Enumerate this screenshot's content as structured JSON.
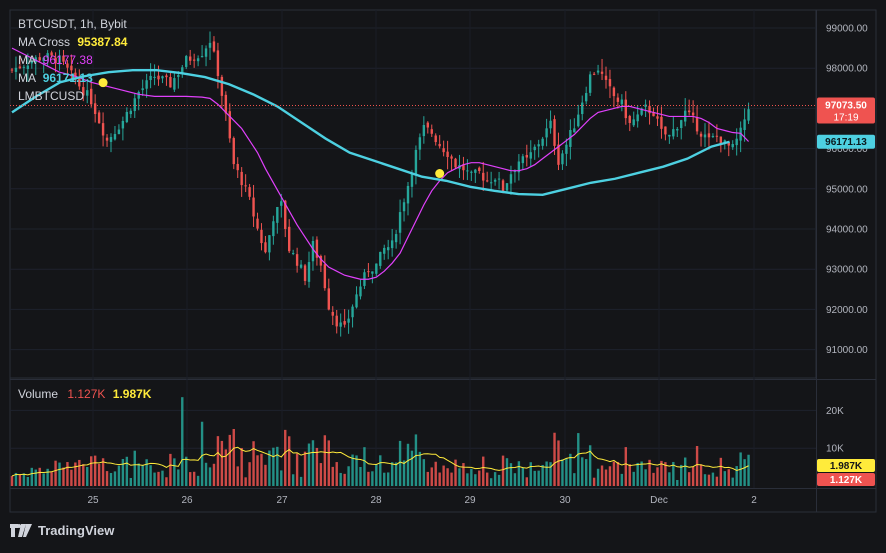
{
  "header": {
    "symbol": "BTCUSDT",
    "interval": "1h",
    "exchange": "Bybit",
    "sep": ","
  },
  "indicators": {
    "ma_cross": {
      "label": "MA Cross",
      "value": "95387.84",
      "color": "#ffeb3b"
    },
    "ma": {
      "label": "MA",
      "value": "96177.38",
      "color": "#e040fb"
    },
    "ma2": {
      "label": "MA",
      "value": "96171.13",
      "color": "#4dd0e1"
    },
    "lmbt": {
      "label": "LMBTCUSD",
      "value": ""
    }
  },
  "price_axis": {
    "ticks": [
      "99000.00",
      "98000.00",
      "97000.00",
      "96000.00",
      "95000.00",
      "94000.00",
      "93000.00",
      "92000.00",
      "91000.00"
    ],
    "last_price": "97073.50",
    "countdown": "17:19",
    "ma_badge": "96171.13"
  },
  "volume": {
    "label": "Volume",
    "v1": "1.127K",
    "v2": "1.987K",
    "ticks": [
      "20K",
      "10K"
    ],
    "badge_ma": "1.987K",
    "badge_vol": "1.127K"
  },
  "time_axis": {
    "labels": [
      "25",
      "26",
      "27",
      "28",
      "29",
      "30",
      "Dec",
      "2"
    ]
  },
  "brand": {
    "name": "TradingView"
  },
  "colors": {
    "up": "#26a69a",
    "down": "#ef5350",
    "slow_ma": "#4dd0e1",
    "fast_ma": "#e040fb",
    "vol_ma": "#ffeb3b",
    "bg": "#141518"
  },
  "chart_data": {
    "type": "candlestick",
    "x_axis": [
      "25",
      "26",
      "27",
      "28",
      "29",
      "30",
      "Dec",
      "2"
    ],
    "ylim": [
      90700,
      99300
    ],
    "close_path": [
      [
        0,
        97960
      ],
      [
        4,
        98150
      ],
      [
        8,
        98300
      ],
      [
        12,
        98200
      ],
      [
        16,
        97700
      ],
      [
        20,
        97200
      ],
      [
        24,
        96200
      ],
      [
        28,
        96700
      ],
      [
        32,
        97400
      ],
      [
        36,
        97800
      ],
      [
        40,
        97600
      ],
      [
        44,
        98200
      ],
      [
        48,
        98400
      ],
      [
        50,
        98700
      ],
      [
        52,
        97900
      ],
      [
        54,
        96800
      ],
      [
        56,
        95600
      ],
      [
        58,
        95200
      ],
      [
        60,
        94700
      ],
      [
        62,
        94000
      ],
      [
        64,
        93400
      ],
      [
        66,
        94300
      ],
      [
        68,
        94600
      ],
      [
        70,
        93500
      ],
      [
        72,
        93200
      ],
      [
        74,
        92800
      ],
      [
        76,
        93600
      ],
      [
        78,
        93100
      ],
      [
        80,
        92100
      ],
      [
        82,
        91700
      ],
      [
        84,
        91500
      ],
      [
        86,
        92100
      ],
      [
        88,
        92600
      ],
      [
        90,
        93000
      ],
      [
        92,
        93100
      ],
      [
        94,
        93500
      ],
      [
        96,
        93600
      ],
      [
        98,
        94400
      ],
      [
        100,
        95100
      ],
      [
        102,
        95900
      ],
      [
        104,
        96500
      ],
      [
        106,
        96400
      ],
      [
        108,
        96100
      ],
      [
        110,
        95900
      ],
      [
        112,
        95600
      ],
      [
        114,
        95500
      ],
      [
        116,
        95300
      ],
      [
        118,
        95400
      ],
      [
        120,
        95200
      ],
      [
        122,
        95300
      ],
      [
        124,
        95000
      ],
      [
        126,
        95400
      ],
      [
        128,
        95700
      ],
      [
        130,
        95700
      ],
      [
        132,
        96000
      ],
      [
        134,
        96300
      ],
      [
        136,
        96600
      ],
      [
        138,
        95700
      ],
      [
        140,
        96100
      ],
      [
        142,
        96600
      ],
      [
        144,
        97200
      ],
      [
        146,
        97800
      ],
      [
        148,
        98000
      ],
      [
        150,
        97600
      ],
      [
        152,
        97300
      ],
      [
        154,
        97100
      ],
      [
        156,
        96600
      ],
      [
        158,
        96800
      ],
      [
        160,
        97000
      ],
      [
        162,
        96900
      ],
      [
        164,
        96400
      ],
      [
        166,
        96300
      ],
      [
        168,
        96600
      ],
      [
        170,
        96900
      ],
      [
        172,
        96700
      ],
      [
        174,
        96400
      ],
      [
        176,
        96200
      ],
      [
        178,
        96300
      ],
      [
        180,
        96100
      ],
      [
        182,
        96000
      ],
      [
        184,
        96400
      ],
      [
        186,
        97073
      ]
    ],
    "ma_fast_path": [
      [
        0,
        98500
      ],
      [
        4,
        98300
      ],
      [
        8,
        98100
      ],
      [
        12,
        97900
      ],
      [
        16,
        97800
      ],
      [
        20,
        97650
      ],
      [
        24,
        97550
      ],
      [
        28,
        97450
      ],
      [
        32,
        97350
      ],
      [
        36,
        97300
      ],
      [
        40,
        97300
      ],
      [
        44,
        97300
      ],
      [
        48,
        97280
      ],
      [
        50,
        97250
      ],
      [
        52,
        97100
      ],
      [
        54,
        96900
      ],
      [
        56,
        96700
      ],
      [
        58,
        96500
      ],
      [
        60,
        96200
      ],
      [
        62,
        95900
      ],
      [
        64,
        95500
      ],
      [
        66,
        95150
      ],
      [
        68,
        94800
      ],
      [
        70,
        94450
      ],
      [
        72,
        94100
      ],
      [
        74,
        93800
      ],
      [
        76,
        93500
      ],
      [
        78,
        93250
      ],
      [
        80,
        93050
      ],
      [
        82,
        92950
      ],
      [
        84,
        92850
      ],
      [
        86,
        92800
      ],
      [
        88,
        92750
      ],
      [
        90,
        92750
      ],
      [
        92,
        92800
      ],
      [
        94,
        92950
      ],
      [
        96,
        93150
      ],
      [
        98,
        93400
      ],
      [
        100,
        93800
      ],
      [
        102,
        94200
      ],
      [
        104,
        94600
      ],
      [
        106,
        94950
      ],
      [
        108,
        95200
      ],
      [
        110,
        95400
      ],
      [
        112,
        95500
      ],
      [
        114,
        95600
      ],
      [
        116,
        95650
      ],
      [
        118,
        95650
      ],
      [
        120,
        95600
      ],
      [
        122,
        95550
      ],
      [
        124,
        95500
      ],
      [
        126,
        95450
      ],
      [
        128,
        95450
      ],
      [
        130,
        95500
      ],
      [
        132,
        95600
      ],
      [
        134,
        95750
      ],
      [
        136,
        95900
      ],
      [
        138,
        96050
      ],
      [
        140,
        96200
      ],
      [
        142,
        96350
      ],
      [
        144,
        96550
      ],
      [
        146,
        96750
      ],
      [
        148,
        96900
      ],
      [
        150,
        96950
      ],
      [
        152,
        97000
      ],
      [
        154,
        97050
      ],
      [
        156,
        97050
      ],
      [
        158,
        97000
      ],
      [
        160,
        96950
      ],
      [
        162,
        96900
      ],
      [
        164,
        96850
      ],
      [
        166,
        96800
      ],
      [
        168,
        96800
      ],
      [
        170,
        96800
      ],
      [
        172,
        96800
      ],
      [
        174,
        96750
      ],
      [
        176,
        96650
      ],
      [
        178,
        96500
      ],
      [
        180,
        96450
      ],
      [
        182,
        96400
      ],
      [
        184,
        96380
      ],
      [
        186,
        96177
      ]
    ],
    "ma_slow_path": [
      [
        0,
        96900
      ],
      [
        8,
        97300
      ],
      [
        16,
        97650
      ],
      [
        24,
        97800
      ],
      [
        32,
        97900
      ],
      [
        40,
        97950
      ],
      [
        48,
        97950
      ],
      [
        56,
        97880
      ],
      [
        64,
        97780
      ],
      [
        72,
        97600
      ],
      [
        80,
        97350
      ],
      [
        88,
        97050
      ],
      [
        96,
        96650
      ],
      [
        104,
        96250
      ],
      [
        112,
        95900
      ],
      [
        120,
        95700
      ],
      [
        128,
        95500
      ],
      [
        136,
        95300
      ],
      [
        144,
        95200
      ],
      [
        152,
        95050
      ],
      [
        160,
        94950
      ],
      [
        168,
        94870
      ],
      [
        176,
        94850
      ],
      [
        184,
        95000
      ],
      [
        192,
        95150
      ],
      [
        200,
        95250
      ],
      [
        208,
        95400
      ],
      [
        216,
        95550
      ],
      [
        224,
        95750
      ],
      [
        232,
        96050
      ],
      [
        238,
        96171
      ]
    ],
    "cross_markers": [
      {
        "bar": 23,
        "price": 97640
      },
      {
        "bar": 108,
        "price": 95380
      }
    ],
    "volume_ylim": [
      0,
      24000
    ],
    "volume_unit": "K"
  }
}
